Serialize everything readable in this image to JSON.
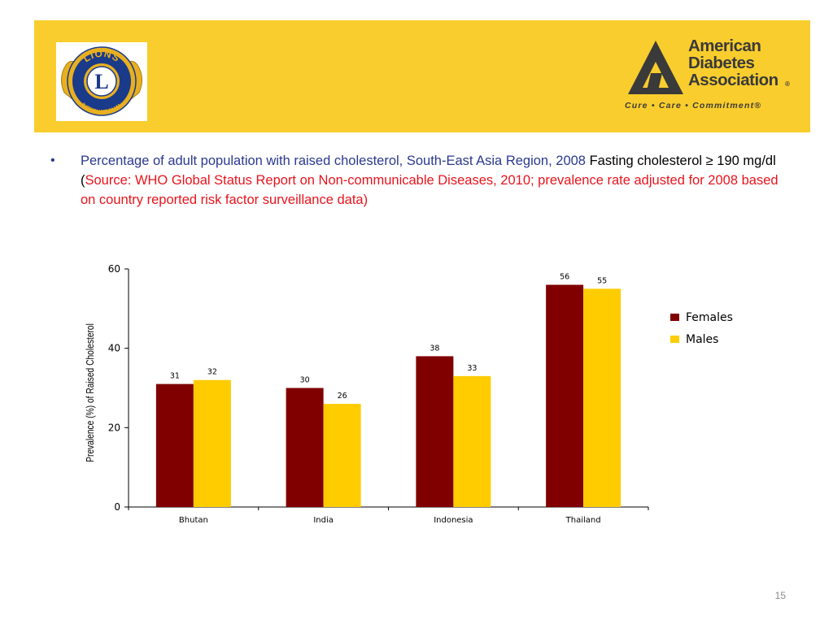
{
  "header": {
    "left_logo": {
      "name": "lions-international-logo",
      "top_text": "LIONS",
      "bottom_text": "INTERNATIONAL",
      "letter": "L"
    },
    "right_logo": {
      "name": "american-diabetes-association-logo",
      "name_lines": [
        "American",
        "Diabetes",
        "Association"
      ],
      "registered": "®",
      "tagline": "Cure • Care • Commitment®"
    }
  },
  "bullet": {
    "symbol": "•",
    "part1": "Percentage of adult population with raised cholesterol,  South-East Asia Region, 2008",
    "part2": "  Fasting cholesterol ≥ 190 mg/dl (",
    "part3": "Source: WHO Global Status Report on Non-communicable Diseases, 2010; prevalence rate adjusted for 2008 based on country reported risk factor surveillance data)"
  },
  "chart_data": {
    "type": "bar",
    "categories": [
      "Bhutan",
      "India",
      "Indonesia",
      "Thailand"
    ],
    "series": [
      {
        "name": "Females",
        "values": [
          31,
          30,
          38,
          56
        ],
        "color": "#800000"
      },
      {
        "name": "Males",
        "values": [
          32,
          26,
          33,
          55
        ],
        "color": "#ffcc00"
      }
    ],
    "title": "",
    "xlabel": "",
    "ylabel": "Prevalence (%) of Raised Cholesterol",
    "ylim": [
      0,
      60
    ],
    "yticks": [
      "0",
      "20",
      "40",
      "60"
    ],
    "grid": false,
    "legend_position": "right"
  },
  "page_number": "15"
}
